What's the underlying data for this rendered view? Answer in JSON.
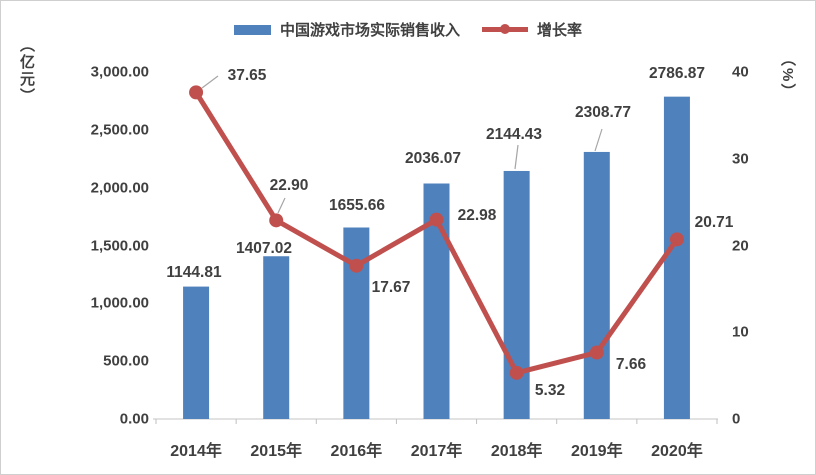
{
  "colors": {
    "bar": "#4F81BD",
    "line": "#C0504D",
    "text": "#404040",
    "axis_line": "#D9D9D9",
    "tick_mark": "#BFBFBF",
    "leader": "#A6A6A6",
    "background": "#FFFFFF",
    "border": "#CFCFCF"
  },
  "chart_data": {
    "type": "bar",
    "subtype": "combo-bar-line",
    "grid": false,
    "legend_position": "top-center",
    "categories": [
      "2014年",
      "2015年",
      "2016年",
      "2017年",
      "2018年",
      "2019年",
      "2020年"
    ],
    "series": [
      {
        "name": "中国游戏市场实际销售收入",
        "type": "bar",
        "axis": "left",
        "color": "#4F81BD",
        "values": [
          1144.81,
          1407.02,
          1655.66,
          2036.07,
          2144.43,
          2308.77,
          2786.87
        ]
      },
      {
        "name": "增长率",
        "type": "line",
        "axis": "right",
        "color": "#C0504D",
        "values": [
          37.65,
          22.9,
          17.67,
          22.98,
          5.32,
          7.66,
          20.71
        ]
      }
    ],
    "bar_labels": [
      "1144.81",
      "1407.02",
      "1655.66",
      "2036.07",
      "2144.43",
      "2308.77",
      "2786.87"
    ],
    "line_labels": [
      "37.65",
      "22.90",
      "17.67",
      "22.98",
      "5.32",
      "7.66",
      "20.71"
    ],
    "left_axis": {
      "title": "（亿元）",
      "min": 0,
      "max": 3000,
      "ticks": [
        {
          "label": "0.00",
          "value": 0
        },
        {
          "label": "500.00",
          "value": 500
        },
        {
          "label": "1,000.00",
          "value": 1000
        },
        {
          "label": "1,500.00",
          "value": 1500
        },
        {
          "label": "2,000.00",
          "value": 2000
        },
        {
          "label": "2,500.00",
          "value": 2500
        },
        {
          "label": "3,000.00",
          "value": 3000
        }
      ]
    },
    "right_axis": {
      "title": "（%）",
      "min": 0,
      "max": 40,
      "ticks": [
        {
          "label": "0",
          "value": 0
        },
        {
          "label": "10",
          "value": 10
        },
        {
          "label": "20",
          "value": 20
        },
        {
          "label": "30",
          "value": 30
        },
        {
          "label": "40",
          "value": 40
        }
      ]
    },
    "legend": [
      {
        "label": "中国游戏市场实际销售收入",
        "marker": "bar-swatch",
        "color": "#4F81BD"
      },
      {
        "label": "增长率",
        "marker": "line-dot",
        "color": "#C0504D"
      }
    ]
  }
}
